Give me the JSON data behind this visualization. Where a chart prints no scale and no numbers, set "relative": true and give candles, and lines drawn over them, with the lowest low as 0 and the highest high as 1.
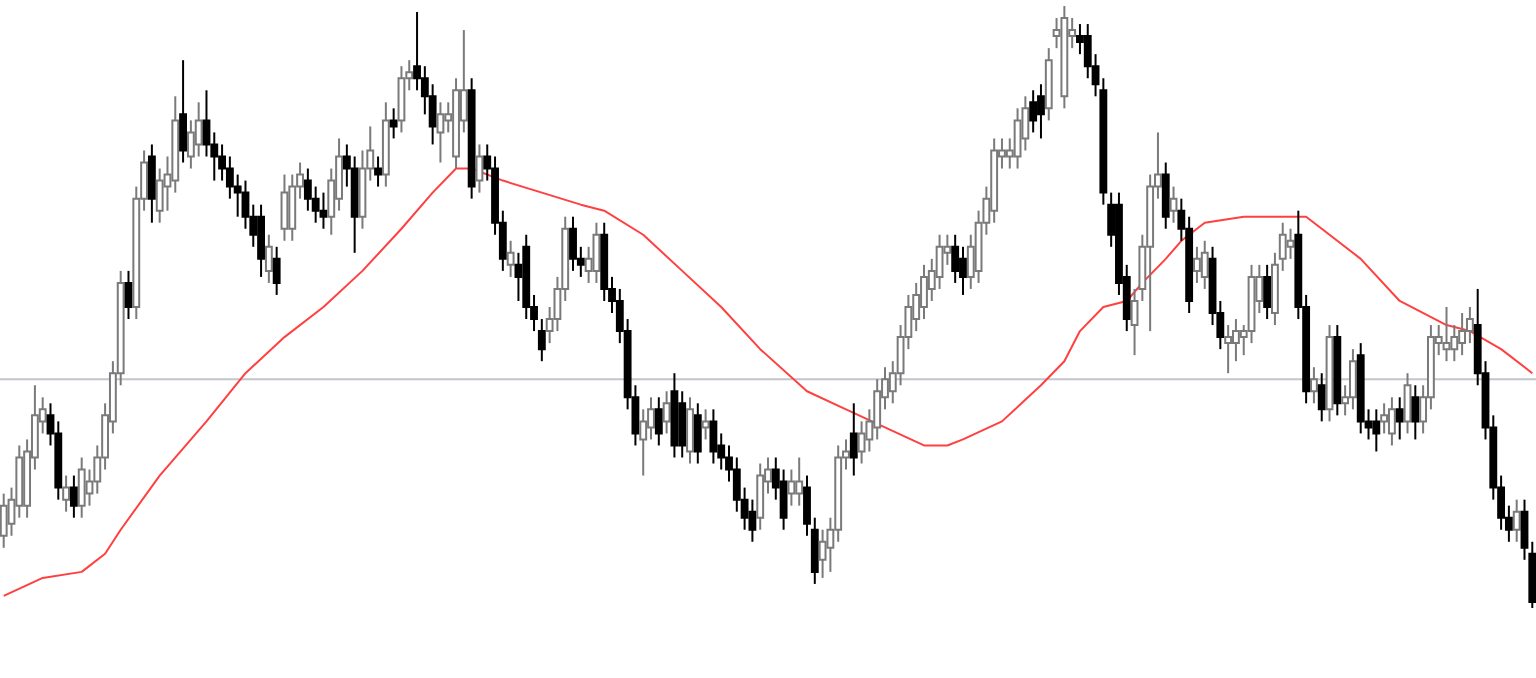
{
  "chart_data": {
    "type": "candlestick",
    "relative": true,
    "categories": [
      null,
      null,
      null,
      null,
      null,
      null,
      null,
      null,
      null,
      null,
      null,
      null,
      null,
      null,
      null,
      null,
      null,
      null,
      null,
      null,
      null,
      null,
      null,
      null,
      null,
      null,
      null,
      null,
      null,
      null,
      null,
      null,
      null,
      null,
      null,
      null,
      null,
      null,
      null,
      null,
      null,
      null,
      null,
      null,
      null,
      null,
      null,
      null,
      null,
      null,
      null,
      null,
      null,
      null,
      null,
      null,
      null,
      null,
      null,
      null,
      null,
      null,
      null,
      null,
      null,
      null,
      null,
      null,
      null,
      null,
      null,
      null,
      null,
      null,
      null,
      null,
      null,
      null,
      null,
      null,
      null,
      null,
      null,
      null,
      null,
      null,
      null,
      null,
      null,
      null,
      null,
      null,
      null,
      null,
      null,
      null,
      null,
      null,
      null,
      null,
      null,
      null,
      null,
      null,
      null,
      null,
      null,
      null,
      null,
      null,
      null,
      null,
      null,
      null,
      null,
      null,
      null,
      null,
      null,
      null,
      null,
      null,
      null,
      null,
      null,
      null,
      null,
      null,
      null,
      null,
      null,
      null,
      null,
      null,
      null,
      null,
      null,
      null,
      null,
      null,
      null,
      null,
      null,
      null,
      null,
      null,
      null,
      null,
      null,
      null,
      null,
      null,
      null,
      null,
      null,
      null,
      null,
      null,
      null,
      null,
      null,
      null,
      null,
      null,
      null,
      null,
      null,
      null,
      null,
      null,
      null,
      null,
      null,
      null,
      null,
      null,
      null,
      null,
      null,
      null,
      null,
      null,
      null,
      null,
      null,
      null,
      null,
      null,
      null,
      null,
      null,
      null,
      null,
      null,
      null,
      null,
      null
    ],
    "ohlc": [
      [
        0.12,
        0.19,
        0.1,
        0.17
      ],
      [
        0.14,
        0.2,
        0.12,
        0.18
      ],
      [
        0.17,
        0.27,
        0.15,
        0.25
      ],
      [
        0.17,
        0.28,
        0.15,
        0.26
      ],
      [
        0.25,
        0.37,
        0.23,
        0.32
      ],
      [
        0.31,
        0.35,
        0.29,
        0.33
      ],
      [
        0.32,
        0.34,
        0.27,
        0.29
      ],
      [
        0.29,
        0.31,
        0.18,
        0.2
      ],
      [
        0.18,
        0.22,
        0.16,
        0.2
      ],
      [
        0.2,
        0.22,
        0.15,
        0.17
      ],
      [
        0.17,
        0.25,
        0.15,
        0.23
      ],
      [
        0.19,
        0.23,
        0.17,
        0.21
      ],
      [
        0.21,
        0.27,
        0.19,
        0.25
      ],
      [
        0.25,
        0.34,
        0.23,
        0.32
      ],
      [
        0.31,
        0.41,
        0.29,
        0.39
      ],
      [
        0.39,
        0.56,
        0.37,
        0.54
      ],
      [
        0.54,
        0.56,
        0.48,
        0.5
      ],
      [
        0.5,
        0.7,
        0.48,
        0.68
      ],
      [
        0.68,
        0.76,
        0.66,
        0.74
      ],
      [
        0.75,
        0.77,
        0.64,
        0.68
      ],
      [
        0.66,
        0.73,
        0.64,
        0.71
      ],
      [
        0.7,
        0.75,
        0.66,
        0.72
      ],
      [
        0.71,
        0.85,
        0.69,
        0.81
      ],
      [
        0.82,
        0.91,
        0.74,
        0.76
      ],
      [
        0.75,
        0.81,
        0.73,
        0.79
      ],
      [
        0.77,
        0.84,
        0.75,
        0.81
      ],
      [
        0.81,
        0.86,
        0.75,
        0.77
      ],
      [
        0.77,
        0.79,
        0.71,
        0.75
      ],
      [
        0.75,
        0.77,
        0.71,
        0.73
      ],
      [
        0.73,
        0.75,
        0.68,
        0.7
      ],
      [
        0.7,
        0.72,
        0.65,
        0.69
      ],
      [
        0.69,
        0.71,
        0.63,
        0.65
      ],
      [
        0.65,
        0.67,
        0.6,
        0.62
      ],
      [
        0.65,
        0.67,
        0.55,
        0.58
      ],
      [
        0.56,
        0.62,
        0.54,
        0.6
      ],
      [
        0.58,
        0.6,
        0.52,
        0.54
      ],
      [
        0.63,
        0.72,
        0.61,
        0.69
      ],
      [
        0.63,
        0.72,
        0.61,
        0.7
      ],
      [
        0.7,
        0.74,
        0.68,
        0.72
      ],
      [
        0.71,
        0.73,
        0.66,
        0.68
      ],
      [
        0.68,
        0.7,
        0.64,
        0.66
      ],
      [
        0.66,
        0.69,
        0.63,
        0.65
      ],
      [
        0.65,
        0.73,
        0.62,
        0.71
      ],
      [
        0.68,
        0.78,
        0.66,
        0.75
      ],
      [
        0.75,
        0.77,
        0.7,
        0.73
      ],
      [
        0.73,
        0.75,
        0.59,
        0.65
      ],
      [
        0.65,
        0.76,
        0.63,
        0.73
      ],
      [
        0.73,
        0.8,
        0.71,
        0.76
      ],
      [
        0.73,
        0.75,
        0.7,
        0.72
      ],
      [
        0.72,
        0.84,
        0.7,
        0.81
      ],
      [
        0.81,
        0.83,
        0.78,
        0.8
      ],
      [
        0.81,
        0.9,
        0.79,
        0.88
      ],
      [
        0.88,
        0.91,
        0.86,
        0.89
      ],
      [
        0.9,
        0.99,
        0.86,
        0.88
      ],
      [
        0.88,
        0.9,
        0.82,
        0.85
      ],
      [
        0.85,
        0.87,
        0.77,
        0.8
      ],
      [
        0.79,
        0.84,
        0.74,
        0.82
      ],
      [
        0.81,
        0.84,
        0.79,
        0.82
      ],
      [
        0.75,
        0.88,
        0.73,
        0.86
      ],
      [
        0.81,
        0.96,
        0.79,
        0.86
      ],
      [
        0.86,
        0.88,
        0.68,
        0.7
      ],
      [
        0.71,
        0.77,
        0.69,
        0.75
      ],
      [
        0.75,
        0.77,
        0.71,
        0.73
      ],
      [
        0.73,
        0.75,
        0.62,
        0.64
      ],
      [
        0.64,
        0.66,
        0.56,
        0.58
      ],
      [
        0.57,
        0.61,
        0.55,
        0.59
      ],
      [
        0.57,
        0.59,
        0.51,
        0.55
      ],
      [
        0.6,
        0.62,
        0.48,
        0.5
      ],
      [
        0.5,
        0.52,
        0.46,
        0.48
      ],
      [
        0.46,
        0.48,
        0.41,
        0.43
      ],
      [
        0.46,
        0.5,
        0.44,
        0.48
      ],
      [
        0.48,
        0.55,
        0.46,
        0.53
      ],
      [
        0.53,
        0.65,
        0.51,
        0.63
      ],
      [
        0.63,
        0.65,
        0.56,
        0.58
      ],
      [
        0.58,
        0.6,
        0.55,
        0.57
      ],
      [
        0.56,
        0.6,
        0.54,
        0.58
      ],
      [
        0.56,
        0.64,
        0.54,
        0.62
      ],
      [
        0.62,
        0.64,
        0.51,
        0.53
      ],
      [
        0.53,
        0.55,
        0.49,
        0.51
      ],
      [
        0.51,
        0.53,
        0.44,
        0.46
      ],
      [
        0.46,
        0.48,
        0.33,
        0.35
      ],
      [
        0.35,
        0.37,
        0.27,
        0.29
      ],
      [
        0.28,
        0.33,
        0.22,
        0.31
      ],
      [
        0.3,
        0.35,
        0.28,
        0.33
      ],
      [
        0.33,
        0.35,
        0.27,
        0.29
      ],
      [
        0.31,
        0.36,
        0.29,
        0.34
      ],
      [
        0.36,
        0.39,
        0.25,
        0.27
      ],
      [
        0.34,
        0.36,
        0.25,
        0.27
      ],
      [
        0.26,
        0.35,
        0.24,
        0.33
      ],
      [
        0.32,
        0.34,
        0.24,
        0.26
      ],
      [
        0.3,
        0.33,
        0.28,
        0.31
      ],
      [
        0.31,
        0.33,
        0.24,
        0.26
      ],
      [
        0.27,
        0.29,
        0.23,
        0.25
      ],
      [
        0.25,
        0.27,
        0.21,
        0.23
      ],
      [
        0.23,
        0.25,
        0.16,
        0.18
      ],
      [
        0.18,
        0.2,
        0.13,
        0.15
      ],
      [
        0.16,
        0.18,
        0.11,
        0.13
      ],
      [
        0.15,
        0.24,
        0.13,
        0.22
      ],
      [
        0.21,
        0.25,
        0.19,
        0.23
      ],
      [
        0.23,
        0.25,
        0.18,
        0.2
      ],
      [
        0.21,
        0.23,
        0.13,
        0.15
      ],
      [
        0.19,
        0.23,
        0.17,
        0.21
      ],
      [
        0.19,
        0.25,
        0.17,
        0.21
      ],
      [
        0.2,
        0.22,
        0.12,
        0.14
      ],
      [
        0.13,
        0.15,
        0.04,
        0.06
      ],
      [
        0.08,
        0.13,
        0.05,
        0.11
      ],
      [
        0.1,
        0.15,
        0.06,
        0.13
      ],
      [
        0.13,
        0.27,
        0.11,
        0.25
      ],
      [
        0.25,
        0.28,
        0.23,
        0.26
      ],
      [
        0.29,
        0.34,
        0.22,
        0.25
      ],
      [
        0.26,
        0.31,
        0.24,
        0.29
      ],
      [
        0.28,
        0.33,
        0.26,
        0.31
      ],
      [
        0.3,
        0.38,
        0.28,
        0.36
      ],
      [
        0.35,
        0.4,
        0.33,
        0.38
      ],
      [
        0.36,
        0.41,
        0.34,
        0.39
      ],
      [
        0.39,
        0.47,
        0.37,
        0.45
      ],
      [
        0.45,
        0.52,
        0.43,
        0.5
      ],
      [
        0.48,
        0.54,
        0.46,
        0.52
      ],
      [
        0.5,
        0.57,
        0.48,
        0.55
      ],
      [
        0.53,
        0.58,
        0.51,
        0.56
      ],
      [
        0.55,
        0.62,
        0.53,
        0.6
      ],
      [
        0.59,
        0.62,
        0.57,
        0.6
      ],
      [
        0.6,
        0.62,
        0.54,
        0.56
      ],
      [
        0.58,
        0.6,
        0.52,
        0.55
      ],
      [
        0.55,
        0.62,
        0.53,
        0.6
      ],
      [
        0.56,
        0.66,
        0.54,
        0.64
      ],
      [
        0.64,
        0.7,
        0.62,
        0.68
      ],
      [
        0.66,
        0.78,
        0.64,
        0.76
      ],
      [
        0.75,
        0.78,
        0.73,
        0.76
      ],
      [
        0.75,
        0.78,
        0.73,
        0.76
      ],
      [
        0.75,
        0.83,
        0.73,
        0.81
      ],
      [
        0.78,
        0.85,
        0.76,
        0.83
      ],
      [
        0.84,
        0.86,
        0.79,
        0.81
      ],
      [
        0.85,
        0.87,
        0.78,
        0.82
      ],
      [
        0.83,
        0.93,
        0.81,
        0.91
      ],
      [
        0.95,
        0.98,
        0.93,
        0.96
      ],
      [
        0.85,
        1.0,
        0.83,
        0.98
      ],
      [
        0.95,
        0.98,
        0.93,
        0.96
      ],
      [
        0.95,
        0.97,
        0.92,
        0.94
      ],
      [
        0.95,
        0.97,
        0.88,
        0.9
      ],
      [
        0.9,
        0.92,
        0.85,
        0.87
      ],
      [
        0.86,
        0.88,
        0.67,
        0.69
      ],
      [
        0.67,
        0.69,
        0.6,
        0.62
      ],
      [
        0.67,
        0.69,
        0.52,
        0.54
      ],
      [
        0.55,
        0.57,
        0.46,
        0.48
      ],
      [
        0.47,
        0.53,
        0.42,
        0.51
      ],
      [
        0.53,
        0.62,
        0.51,
        0.6
      ],
      [
        0.6,
        0.72,
        0.46,
        0.7
      ],
      [
        0.7,
        0.79,
        0.68,
        0.72
      ],
      [
        0.72,
        0.74,
        0.63,
        0.65
      ],
      [
        0.66,
        0.7,
        0.64,
        0.68
      ],
      [
        0.66,
        0.68,
        0.61,
        0.63
      ],
      [
        0.63,
        0.65,
        0.49,
        0.51
      ],
      [
        0.56,
        0.6,
        0.54,
        0.58
      ],
      [
        0.55,
        0.61,
        0.53,
        0.59
      ],
      [
        0.58,
        0.6,
        0.47,
        0.49
      ],
      [
        0.49,
        0.51,
        0.43,
        0.45
      ],
      [
        0.44,
        0.47,
        0.39,
        0.45
      ],
      [
        0.44,
        0.48,
        0.41,
        0.46
      ],
      [
        0.45,
        0.47,
        0.42,
        0.46
      ],
      [
        0.46,
        0.57,
        0.44,
        0.55
      ],
      [
        0.51,
        0.57,
        0.49,
        0.55
      ],
      [
        0.55,
        0.57,
        0.48,
        0.5
      ],
      [
        0.49,
        0.59,
        0.47,
        0.57
      ],
      [
        0.58,
        0.64,
        0.56,
        0.62
      ],
      [
        0.6,
        0.63,
        0.58,
        0.61
      ],
      [
        0.62,
        0.66,
        0.48,
        0.5
      ],
      [
        0.5,
        0.52,
        0.34,
        0.36
      ],
      [
        0.36,
        0.4,
        0.34,
        0.38
      ],
      [
        0.37,
        0.39,
        0.31,
        0.33
      ],
      [
        0.33,
        0.47,
        0.31,
        0.45
      ],
      [
        0.45,
        0.47,
        0.32,
        0.34
      ],
      [
        0.34,
        0.37,
        0.32,
        0.35
      ],
      [
        0.35,
        0.43,
        0.33,
        0.41
      ],
      [
        0.42,
        0.44,
        0.29,
        0.31
      ],
      [
        0.31,
        0.33,
        0.28,
        0.3
      ],
      [
        0.31,
        0.33,
        0.26,
        0.29
      ],
      [
        0.31,
        0.34,
        0.29,
        0.32
      ],
      [
        0.29,
        0.35,
        0.27,
        0.33
      ],
      [
        0.33,
        0.35,
        0.28,
        0.31
      ],
      [
        0.31,
        0.39,
        0.29,
        0.37
      ],
      [
        0.35,
        0.37,
        0.28,
        0.31
      ],
      [
        0.31,
        0.37,
        0.29,
        0.35
      ],
      [
        0.35,
        0.47,
        0.33,
        0.45
      ],
      [
        0.44,
        0.47,
        0.42,
        0.45
      ],
      [
        0.43,
        0.5,
        0.41,
        0.44
      ],
      [
        0.43,
        0.47,
        0.41,
        0.45
      ],
      [
        0.44,
        0.49,
        0.42,
        0.46
      ],
      [
        0.46,
        0.5,
        0.44,
        0.48
      ],
      [
        0.47,
        0.53,
        0.37,
        0.39
      ],
      [
        0.39,
        0.41,
        0.28,
        0.3
      ],
      [
        0.3,
        0.32,
        0.18,
        0.2
      ],
      [
        0.2,
        0.22,
        0.13,
        0.15
      ],
      [
        0.15,
        0.17,
        0.11,
        0.13
      ],
      [
        0.13,
        0.18,
        0.11,
        0.16
      ],
      [
        0.16,
        0.18,
        0.08,
        0.1
      ],
      [
        0.09,
        0.11,
        0.0,
        0.01
      ]
    ],
    "series": [
      {
        "type": "line",
        "color": "#ff4040",
        "values": [
          0.02,
          null,
          null,
          null,
          null,
          0.05,
          null,
          null,
          null,
          null,
          0.06,
          null,
          null,
          0.09,
          null,
          0.13,
          null,
          null,
          null,
          null,
          0.22,
          null,
          null,
          null,
          null,
          null,
          0.31,
          null,
          null,
          null,
          null,
          0.39,
          null,
          null,
          null,
          null,
          0.45,
          null,
          null,
          null,
          null,
          0.5,
          null,
          null,
          null,
          null,
          0.56,
          null,
          null,
          null,
          null,
          0.63,
          null,
          null,
          null,
          0.69,
          null,
          null,
          0.73,
          null,
          0.73,
          null,
          null,
          null,
          0.71,
          null,
          null,
          null,
          null,
          0.69,
          null,
          null,
          null,
          null,
          0.67,
          null,
          null,
          0.66,
          null,
          null,
          null,
          null,
          0.62,
          null,
          null,
          null,
          null,
          0.56,
          null,
          null,
          null,
          null,
          0.5,
          null,
          null,
          null,
          null,
          0.43,
          null,
          null,
          null,
          null,
          null,
          0.36,
          null,
          null,
          null,
          null,
          0.33,
          null,
          null,
          null,
          null,
          0.3,
          null,
          null,
          null,
          null,
          0.27,
          null,
          null,
          0.27,
          null,
          0.28,
          null,
          null,
          null,
          null,
          0.31,
          null,
          null,
          null,
          null,
          0.37,
          null,
          null,
          0.41,
          null,
          0.46,
          null,
          null,
          0.5,
          null,
          null,
          0.51,
          null,
          0.54,
          null,
          null,
          0.58,
          null,
          0.61,
          null,
          null,
          0.64,
          null,
          null,
          null,
          null,
          0.65,
          null,
          null,
          null,
          null,
          0.65,
          null,
          null,
          0.65,
          null,
          0.63,
          null,
          null,
          null,
          null,
          0.58,
          null,
          null,
          null,
          null,
          0.51,
          null,
          null,
          null,
          null,
          null,
          0.47,
          null,
          null,
          0.46,
          null,
          null,
          null,
          0.43,
          null,
          null,
          null,
          0.39
        ]
      }
    ],
    "ref_lines": [
      {
        "axis": "y",
        "value": 0.38,
        "color": "#c4c4cc"
      }
    ]
  }
}
